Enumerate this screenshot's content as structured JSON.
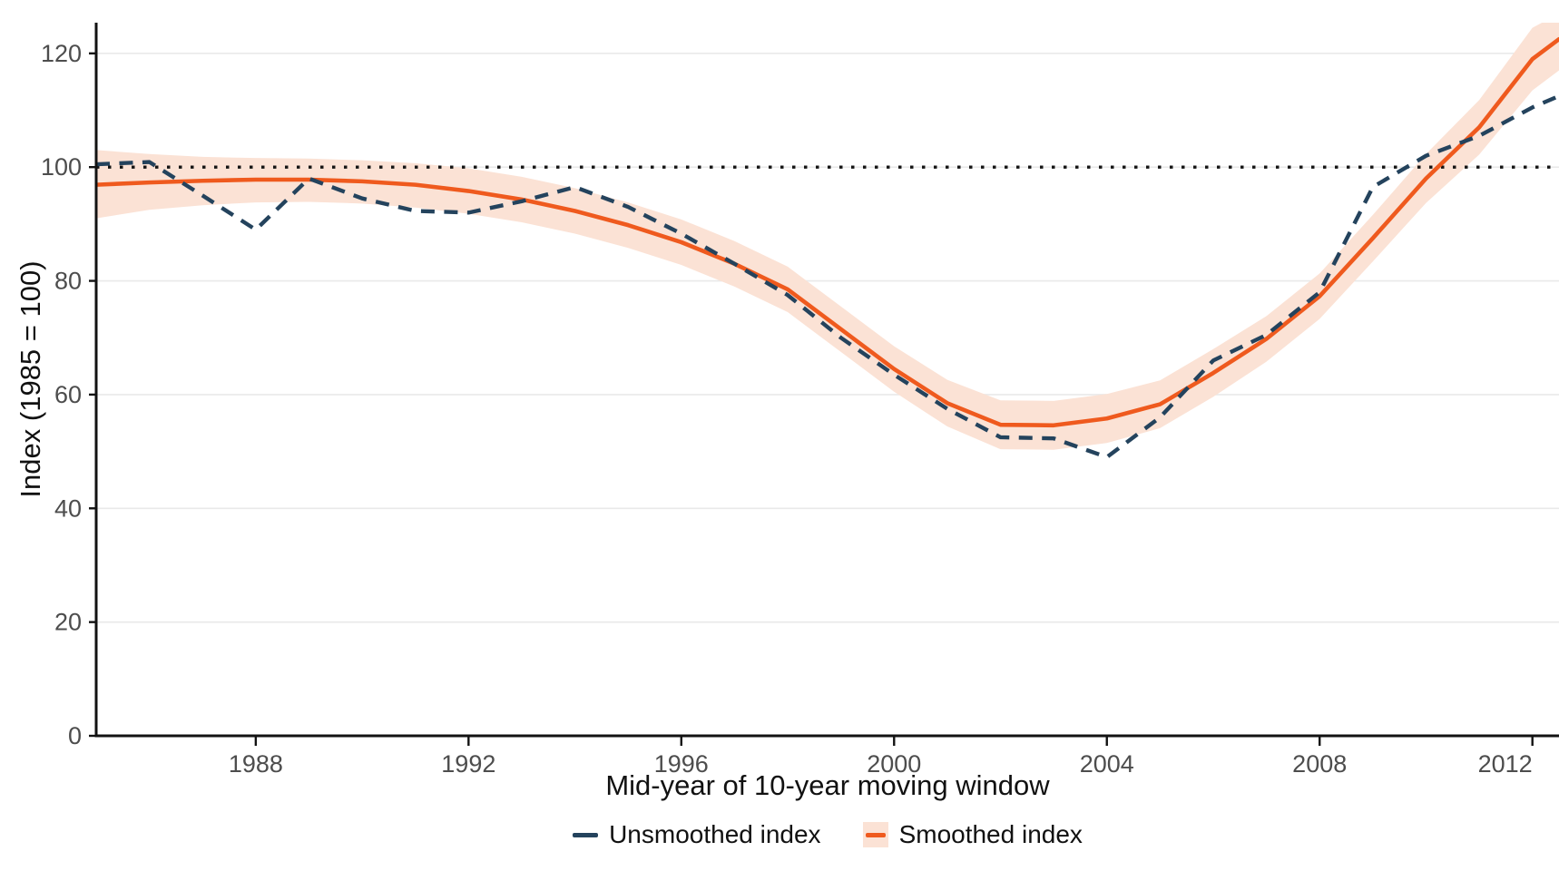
{
  "figure": {
    "background": "#ffffff"
  },
  "chart_data": {
    "type": "line",
    "title": "",
    "xlabel": "Mid-year of 10-year moving window",
    "ylabel": "Index (1985 = 100)",
    "x": [
      1985,
      1986,
      1987,
      1988,
      1989,
      1990,
      1991,
      1992,
      1993,
      1994,
      1995,
      1996,
      1997,
      1998,
      1999,
      2000,
      2001,
      2002,
      2003,
      2004,
      2005,
      2006,
      2007,
      2008,
      2009,
      2010,
      2011,
      2012,
      2012.5
    ],
    "series": [
      {
        "name": "Unsmoothed index",
        "style": "dashed",
        "color": "#24435d",
        "values": [
          100.5,
          100.9,
          95.0,
          89.0,
          98.0,
          94.5,
          92.3,
          92.0,
          94.0,
          96.5,
          93.0,
          88.3,
          83.0,
          77.5,
          70.0,
          63.5,
          57.5,
          52.5,
          52.3,
          49.0,
          56.0,
          66.0,
          70.5,
          78.0,
          96.5,
          102.0,
          105.5,
          110.5,
          112.5
        ]
      },
      {
        "name": "Smoothed index",
        "style": "solid",
        "color": "#ef5a1e",
        "values": [
          96.9,
          97.3,
          97.6,
          97.8,
          97.8,
          97.5,
          96.9,
          95.8,
          94.3,
          92.3,
          89.8,
          86.8,
          83.0,
          78.5,
          71.5,
          64.5,
          58.5,
          54.7,
          54.6,
          55.8,
          58.3,
          63.8,
          69.8,
          77.3,
          87.5,
          98.0,
          107.0,
          119.0,
          122.5
        ],
        "ribbon": {
          "lower": [
            91.0,
            92.5,
            93.3,
            93.8,
            93.9,
            93.6,
            92.9,
            91.8,
            90.3,
            88.3,
            85.8,
            82.8,
            79.0,
            74.5,
            67.5,
            60.5,
            54.4,
            50.4,
            50.3,
            51.5,
            54.1,
            59.6,
            65.8,
            73.3,
            83.4,
            93.7,
            102.2,
            113.5,
            117.0
          ],
          "upper": [
            103.0,
            102.3,
            101.8,
            101.6,
            101.5,
            101.2,
            100.7,
            99.8,
            98.3,
            96.3,
            93.8,
            90.8,
            87.0,
            82.5,
            75.5,
            68.5,
            62.6,
            59.0,
            58.9,
            60.1,
            62.5,
            68.0,
            73.8,
            81.3,
            91.6,
            102.3,
            111.8,
            124.5,
            127.0
          ],
          "color": "#fbe2d5"
        }
      }
    ],
    "reference_line": {
      "y": 100,
      "style": "dotted",
      "color": "#141414"
    },
    "xticks": [
      "1988",
      "1992",
      "1996",
      "2000",
      "2004",
      "2008",
      "2012"
    ],
    "xtick_values": [
      1988,
      1992,
      1996,
      2000,
      2004,
      2008,
      2012
    ],
    "yticks": [
      "0",
      "20",
      "40",
      "60",
      "80",
      "100",
      "120"
    ],
    "ytick_values": [
      0,
      20,
      40,
      60,
      80,
      100,
      120
    ],
    "xlim": [
      1985,
      2012.5
    ],
    "ylim": [
      0,
      125.4
    ],
    "grid": "horizontal-major",
    "legend_position": "bottom",
    "axis_color": "#121212",
    "grid_color": "#e9e9e9",
    "tick_label_color": "#4d4d4d"
  },
  "legend": {
    "items": [
      {
        "label": "Unsmoothed index",
        "marker": "dash-line"
      },
      {
        "label": "Smoothed index",
        "marker": "line-on-ribbon"
      }
    ]
  }
}
